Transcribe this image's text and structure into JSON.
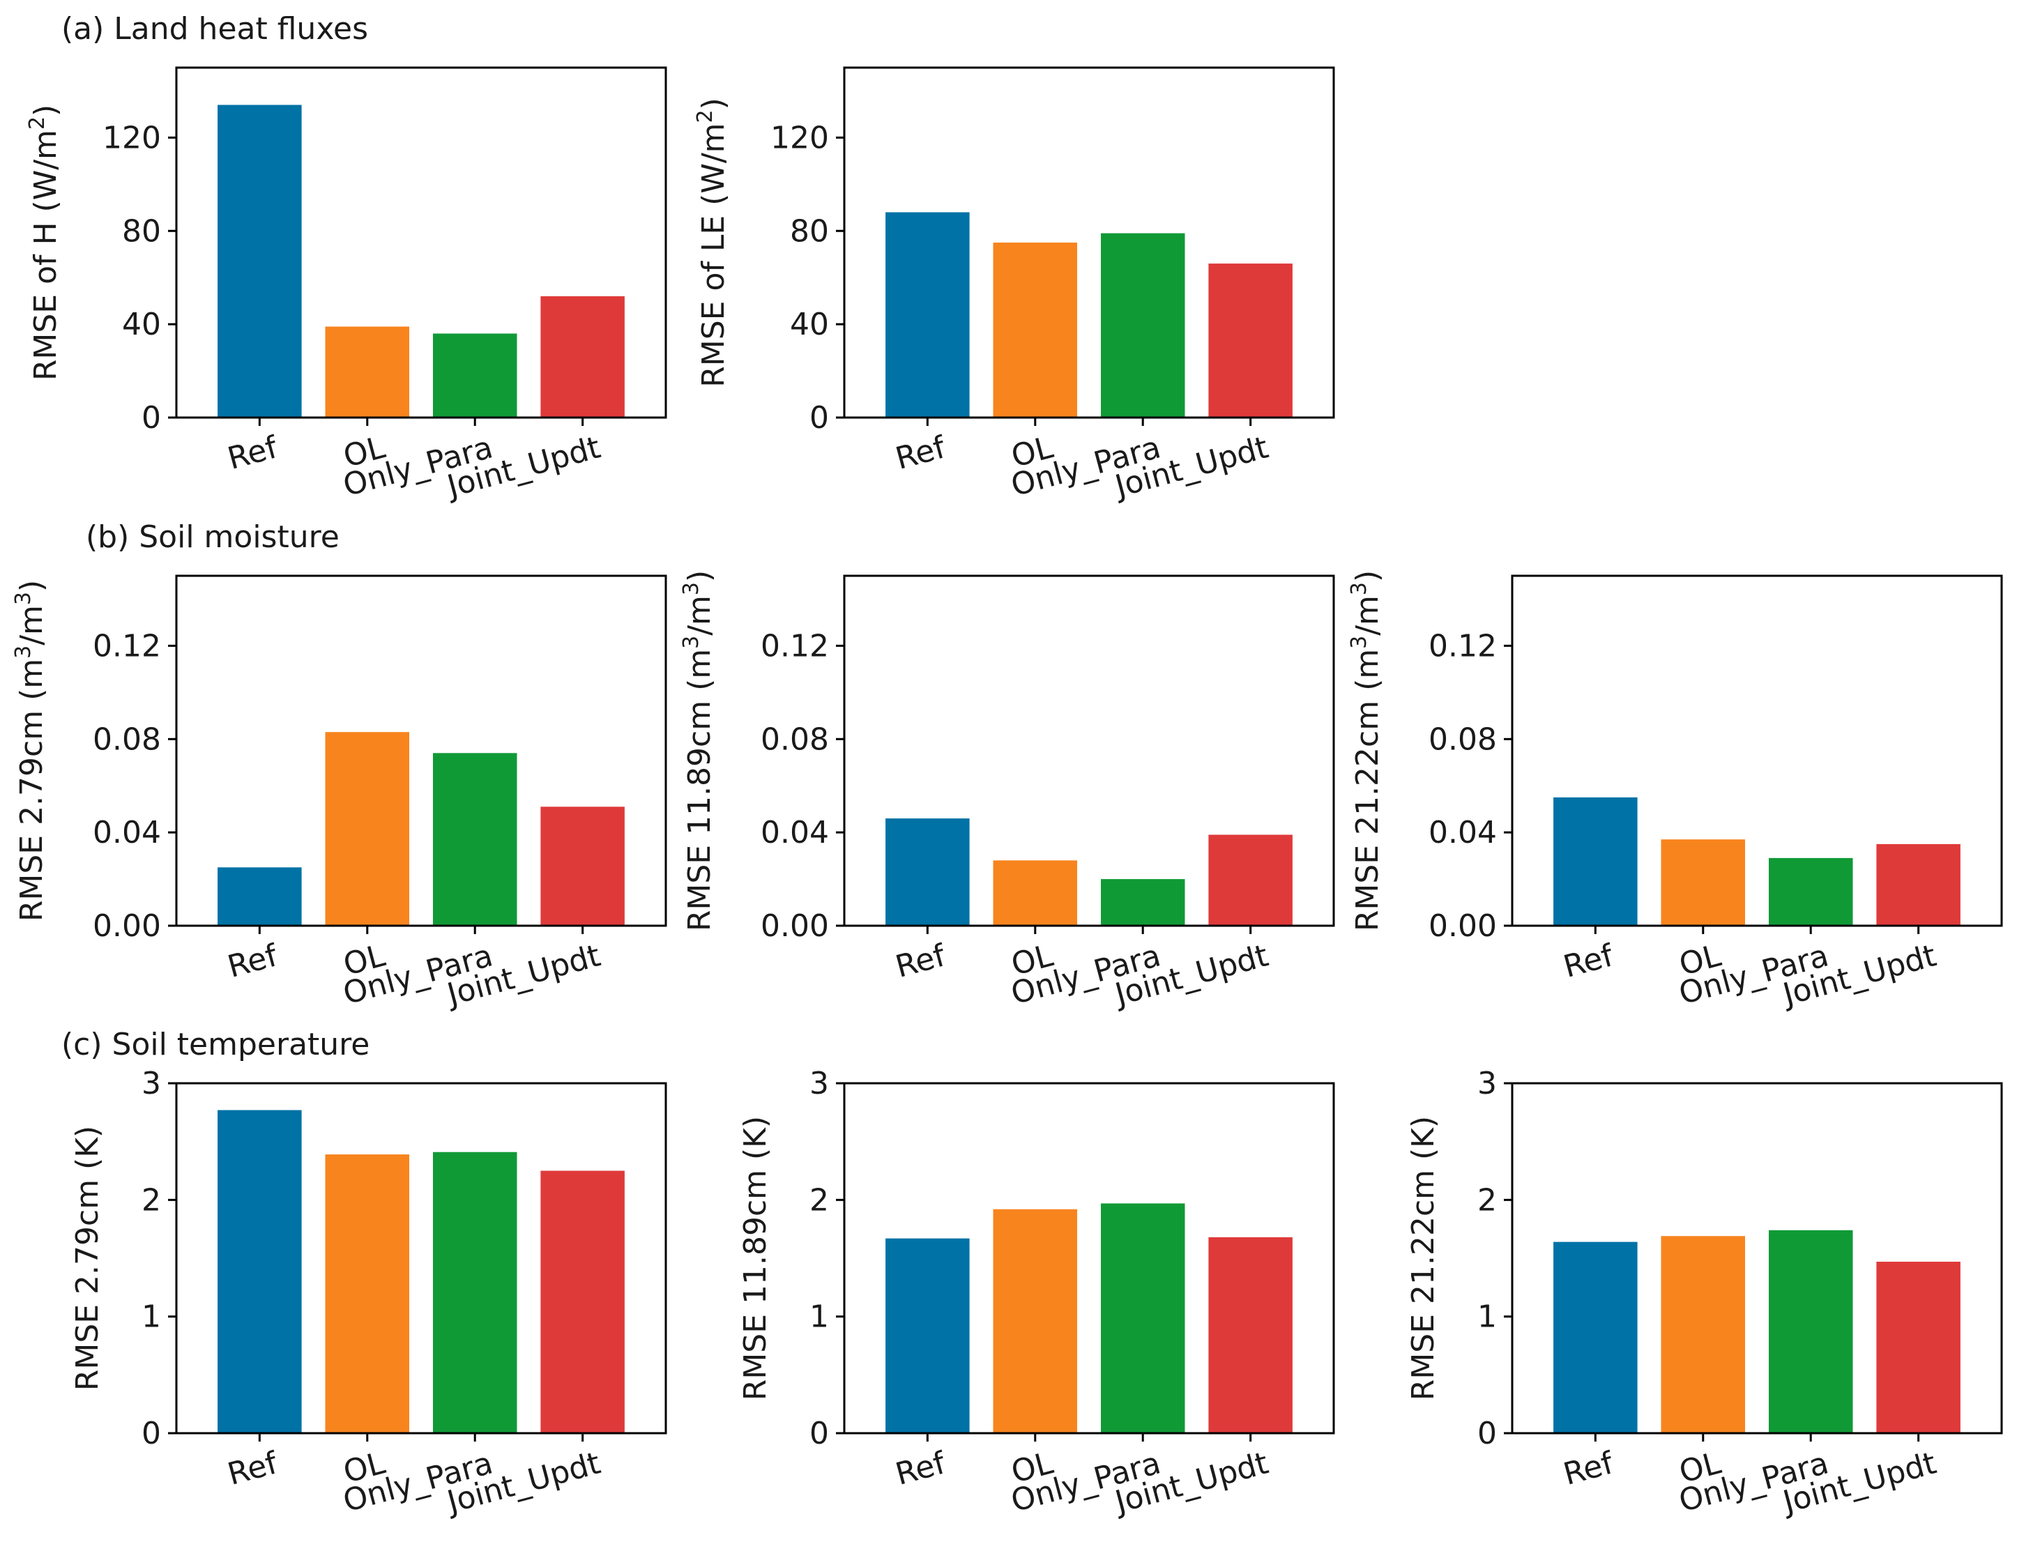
{
  "sections": {
    "a": "(a) Land heat fluxes",
    "b": "(b) Soil moisture",
    "c": "(c) Soil temperature"
  },
  "colors": [
    "#0072a6",
    "#f8841e",
    "#109a36",
    "#df3a3a"
  ],
  "chart_data": [
    {
      "id": "p_a1",
      "type": "bar",
      "section": "a",
      "categories": [
        "Ref",
        "OL",
        "Only_Para",
        "Joint_Updt"
      ],
      "values": [
        134,
        39,
        36,
        52
      ],
      "ylim": [
        0,
        150
      ],
      "yticks": [
        0,
        40,
        80,
        120
      ],
      "ytick_labels": [
        "0",
        "40",
        "80",
        "120"
      ],
      "ylabel": "RMSE of H (W/m",
      "ylabel_sup": "2",
      "ylabel_end": ")"
    },
    {
      "id": "p_a2",
      "type": "bar",
      "section": "a",
      "categories": [
        "Ref",
        "OL",
        "Only_Para",
        "Joint_Updt"
      ],
      "values": [
        88,
        75,
        79,
        66
      ],
      "ylim": [
        0,
        150
      ],
      "yticks": [
        0,
        40,
        80,
        120
      ],
      "ytick_labels": [
        "0",
        "40",
        "80",
        "120"
      ],
      "ylabel": "RMSE of LE (W/m",
      "ylabel_sup": "2",
      "ylabel_end": ")"
    },
    {
      "id": "p_b1",
      "type": "bar",
      "section": "b",
      "categories": [
        "Ref",
        "OL",
        "Only_Para",
        "Joint_Updt"
      ],
      "values": [
        0.025,
        0.083,
        0.074,
        0.051
      ],
      "ylim": [
        0,
        0.15
      ],
      "yticks": [
        0,
        0.04,
        0.08,
        0.12
      ],
      "ytick_labels": [
        "0.00",
        "0.04",
        "0.08",
        "0.12"
      ],
      "ylabel": "RMSE 2.79cm (m",
      "ylabel_sup": "3",
      "ylabel_mid": "/m",
      "ylabel_sup2": "3",
      "ylabel_end": ")"
    },
    {
      "id": "p_b2",
      "type": "bar",
      "section": "b",
      "categories": [
        "Ref",
        "OL",
        "Only_Para",
        "Joint_Updt"
      ],
      "values": [
        0.046,
        0.028,
        0.02,
        0.039
      ],
      "ylim": [
        0,
        0.15
      ],
      "yticks": [
        0,
        0.04,
        0.08,
        0.12
      ],
      "ytick_labels": [
        "0.00",
        "0.04",
        "0.08",
        "0.12"
      ],
      "ylabel": "RMSE 11.89cm (m",
      "ylabel_sup": "3",
      "ylabel_mid": "/m",
      "ylabel_sup2": "3",
      "ylabel_end": ")"
    },
    {
      "id": "p_b3",
      "type": "bar",
      "section": "b",
      "categories": [
        "Ref",
        "OL",
        "Only_Para",
        "Joint_Updt"
      ],
      "values": [
        0.055,
        0.037,
        0.029,
        0.035
      ],
      "ylim": [
        0,
        0.15
      ],
      "yticks": [
        0,
        0.04,
        0.08,
        0.12
      ],
      "ytick_labels": [
        "0.00",
        "0.04",
        "0.08",
        "0.12"
      ],
      "ylabel": "RMSE 21.22cm (m",
      "ylabel_sup": "3",
      "ylabel_mid": "/m",
      "ylabel_sup2": "3",
      "ylabel_end": ")"
    },
    {
      "id": "p_c1",
      "type": "bar",
      "section": "c",
      "categories": [
        "Ref",
        "OL",
        "Only_Para",
        "Joint_Updt"
      ],
      "values": [
        2.77,
        2.39,
        2.41,
        2.25
      ],
      "ylim": [
        0,
        3
      ],
      "yticks": [
        0,
        1,
        2,
        3
      ],
      "ytick_labels": [
        "0",
        "1",
        "2",
        "3"
      ],
      "ylabel": "RMSE 2.79cm (K)"
    },
    {
      "id": "p_c2",
      "type": "bar",
      "section": "c",
      "categories": [
        "Ref",
        "OL",
        "Only_Para",
        "Joint_Updt"
      ],
      "values": [
        1.67,
        1.92,
        1.97,
        1.68
      ],
      "ylim": [
        0,
        3
      ],
      "yticks": [
        0,
        1,
        2,
        3
      ],
      "ytick_labels": [
        "0",
        "1",
        "2",
        "3"
      ],
      "ylabel": "RMSE 11.89cm (K)"
    },
    {
      "id": "p_c3",
      "type": "bar",
      "section": "c",
      "categories": [
        "Ref",
        "OL",
        "Only_Para",
        "Joint_Updt"
      ],
      "values": [
        1.64,
        1.69,
        1.74,
        1.47
      ],
      "ylim": [
        0,
        3
      ],
      "yticks": [
        0,
        1,
        2,
        3
      ],
      "ytick_labels": [
        "0",
        "1",
        "2",
        "3"
      ],
      "ylabel": "RMSE 21.22cm (K)"
    }
  ]
}
